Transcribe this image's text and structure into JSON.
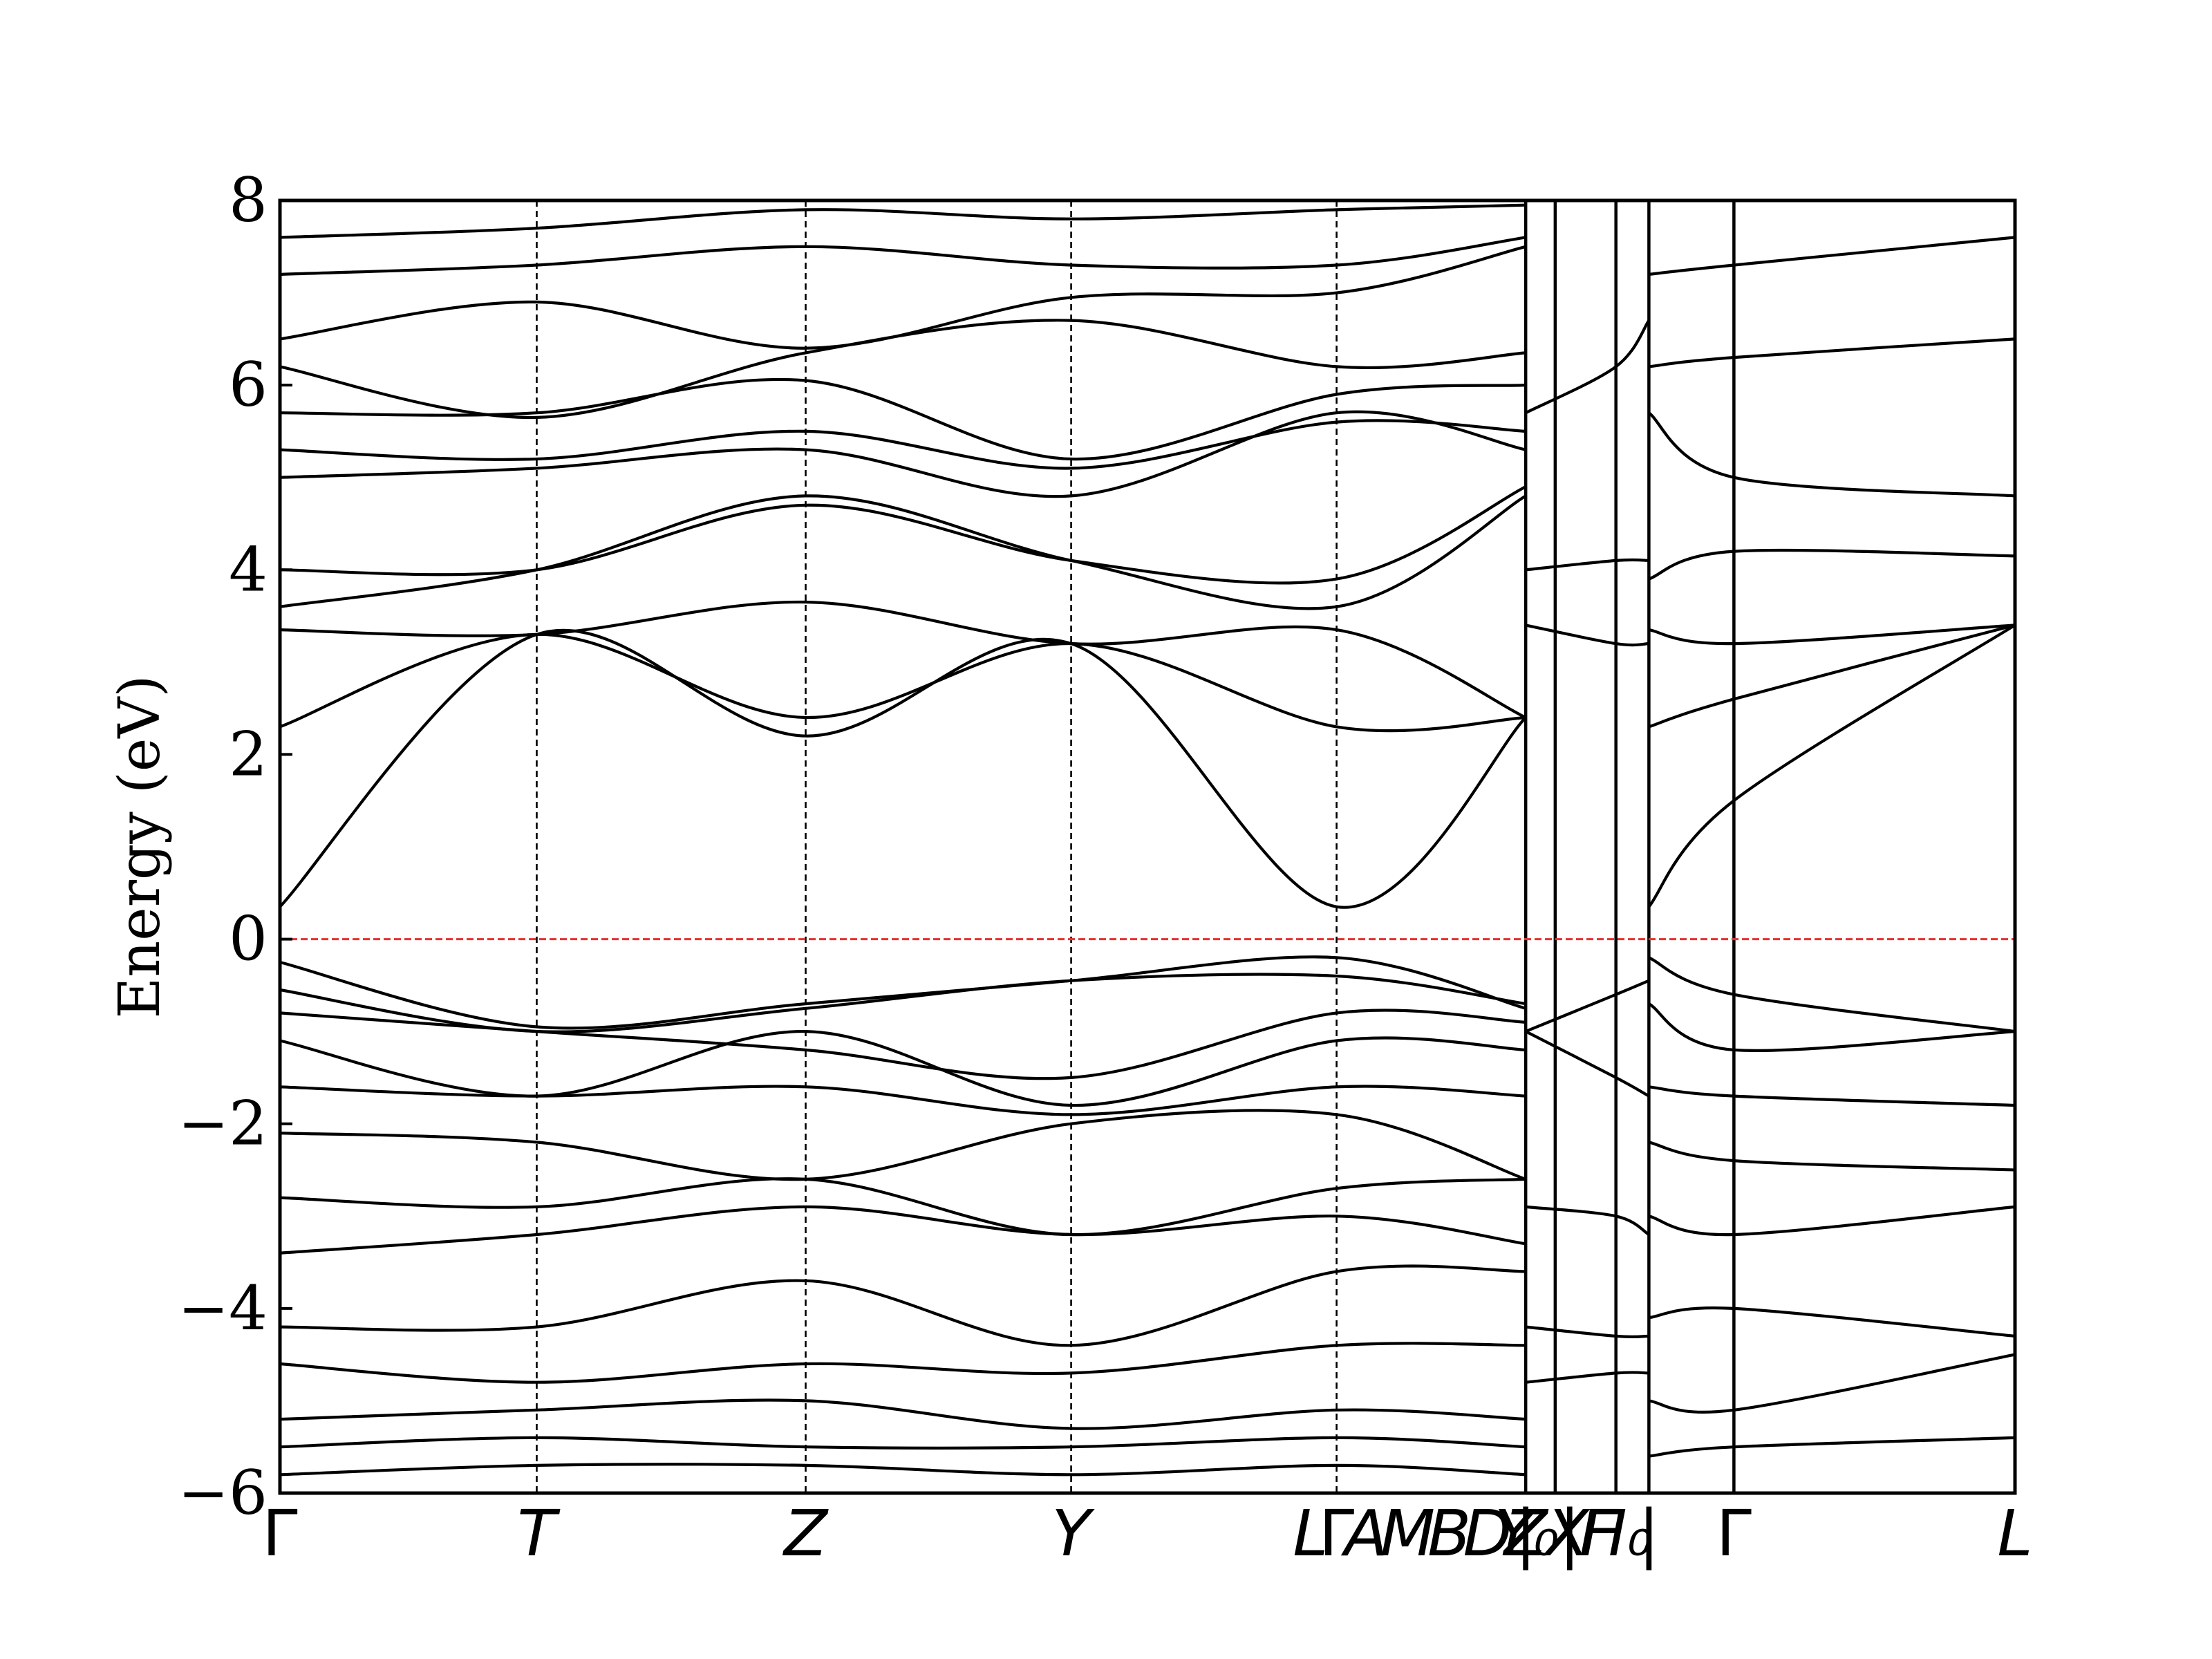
{
  "chart_data": {
    "type": "line",
    "title": "",
    "xlabel": "",
    "ylabel": "Energy (eV)",
    "ylim": [
      -6,
      8
    ],
    "yticks": [
      -6,
      -4,
      -2,
      0,
      2,
      4,
      6,
      8
    ],
    "ytick_labels": [
      "−6",
      "−4",
      "−2",
      "0",
      "2",
      "4",
      "6",
      "8"
    ],
    "grid": false,
    "fermi_level": 0,
    "colors": {
      "bands": "#000000",
      "fermi": "#e8322e",
      "divider": "#000000"
    },
    "x_range": [
      0,
      100
    ],
    "kpath": [
      {
        "label": "Γ",
        "x": 0,
        "italic": false,
        "kind": "edge"
      },
      {
        "label": "T",
        "x": 14.8,
        "italic": true,
        "kind": "dashed"
      },
      {
        "label": "Z",
        "x": 30.3,
        "italic": true,
        "kind": "dashed"
      },
      {
        "label": "Y",
        "x": 45.6,
        "italic": true,
        "kind": "dashed"
      },
      {
        "label": "L",
        "x": 59.4,
        "italic": true,
        "kind": "label"
      },
      {
        "label": "Γ",
        "x": 60.9,
        "italic": false,
        "kind": "dashed"
      },
      {
        "label": "A",
        "x": 62.6,
        "italic": true,
        "kind": "label"
      },
      {
        "label": "M",
        "x": 65.0,
        "italic": true,
        "kind": "label"
      },
      {
        "label": "B",
        "x": 67.4,
        "italic": true,
        "kind": "label"
      },
      {
        "label": "D",
        "x": 69.6,
        "italic": true,
        "kind": "label"
      },
      {
        "label": "Z",
        "x": 71.8,
        "italic": true,
        "kind": "label"
      },
      {
        "label": "X",
        "x": 74.2,
        "italic": true,
        "kind": "label"
      },
      {
        "label": "|",
        "x": 71.8,
        "italic": false,
        "kind": "solid"
      },
      {
        "label": "Y₀|Γ",
        "x": 73.5,
        "italic": true,
        "kind": "solid"
      },
      {
        "label": "H₀",
        "x": 77.0,
        "italic": true,
        "kind": "solid"
      },
      {
        "label": "|",
        "x": 78.9,
        "italic": false,
        "kind": "solid"
      },
      {
        "label": "Γ",
        "x": 83.8,
        "italic": false,
        "kind": "solid"
      },
      {
        "label": "L",
        "x": 100,
        "italic": true,
        "kind": "edge"
      }
    ],
    "series": [
      {
        "x": [
          0,
          14.8,
          30.3,
          45.6,
          60.9,
          71.8
        ],
        "y": [
          0.35,
          3.3,
          2.2,
          3.2,
          0.35,
          2.4
        ]
      },
      {
        "x": [
          0,
          14.8,
          30.3,
          45.6,
          60.9,
          71.8
        ],
        "y": [
          2.3,
          3.3,
          2.4,
          3.2,
          2.3,
          2.4
        ]
      },
      {
        "x": [
          0,
          14.8,
          30.3,
          45.6,
          60.9,
          71.8
        ],
        "y": [
          3.35,
          3.3,
          3.65,
          3.2,
          3.35,
          2.4
        ]
      },
      {
        "x": [
          0,
          14.8,
          30.3,
          45.6,
          60.9,
          71.8
        ],
        "y": [
          3.6,
          4.0,
          4.8,
          4.1,
          3.6,
          4.8
        ]
      },
      {
        "x": [
          0,
          14.8,
          30.3,
          45.6,
          60.9,
          71.8
        ],
        "y": [
          4.0,
          4.0,
          4.7,
          4.1,
          3.9,
          4.9
        ]
      },
      {
        "x": [
          0,
          14.8,
          30.3,
          45.6,
          60.9,
          71.8
        ],
        "y": [
          5.0,
          5.1,
          5.3,
          4.8,
          5.7,
          5.3
        ]
      },
      {
        "x": [
          0,
          14.8,
          30.3,
          45.6,
          60.9,
          71.8
        ],
        "y": [
          5.3,
          5.2,
          5.5,
          5.1,
          5.6,
          5.5
        ]
      },
      {
        "x": [
          0,
          14.8,
          30.3,
          45.6,
          60.9,
          71.8
        ],
        "y": [
          5.7,
          5.7,
          6.05,
          5.2,
          5.9,
          6.0
        ]
      },
      {
        "x": [
          0,
          14.8,
          30.3,
          45.6,
          60.9,
          71.8
        ],
        "y": [
          6.2,
          5.65,
          6.35,
          6.7,
          6.2,
          6.35
        ]
      },
      {
        "x": [
          0,
          14.8,
          30.3,
          45.6,
          60.9,
          71.8
        ],
        "y": [
          6.5,
          6.9,
          6.4,
          6.95,
          7.0,
          7.5
        ]
      },
      {
        "x": [
          0,
          14.8,
          30.3,
          45.6,
          60.9,
          71.8
        ],
        "y": [
          7.2,
          7.3,
          7.5,
          7.3,
          7.3,
          7.6
        ]
      },
      {
        "x": [
          0,
          14.8,
          30.3,
          45.6,
          60.9,
          71.8
        ],
        "y": [
          7.6,
          7.7,
          7.9,
          7.8,
          7.9,
          7.95
        ]
      },
      {
        "x": [
          0,
          14.8,
          30.3,
          45.6,
          60.9,
          71.8
        ],
        "y": [
          -0.25,
          -0.95,
          -0.7,
          -0.45,
          -0.2,
          -0.75
        ]
      },
      {
        "x": [
          0,
          14.8,
          30.3,
          45.6,
          60.9,
          71.8
        ],
        "y": [
          -0.55,
          -1.0,
          -0.75,
          -0.45,
          -0.4,
          -0.7
        ]
      },
      {
        "x": [
          0,
          14.8,
          30.3,
          45.6,
          60.9,
          71.8
        ],
        "y": [
          -0.8,
          -1.0,
          -1.2,
          -1.5,
          -0.8,
          -0.9
        ]
      },
      {
        "x": [
          0,
          14.8,
          30.3,
          45.6,
          60.9,
          71.8
        ],
        "y": [
          -1.1,
          -1.7,
          -1.0,
          -1.8,
          -1.1,
          -1.2
        ]
      },
      {
        "x": [
          0,
          14.8,
          30.3,
          45.6,
          60.9,
          71.8
        ],
        "y": [
          -1.6,
          -1.7,
          -1.6,
          -1.9,
          -1.6,
          -1.7
        ]
      },
      {
        "x": [
          0,
          14.8,
          30.3,
          45.6,
          60.9,
          71.8
        ],
        "y": [
          -2.1,
          -2.2,
          -2.6,
          -2.0,
          -1.9,
          -2.6
        ]
      },
      {
        "x": [
          0,
          14.8,
          30.3,
          45.6,
          60.9,
          71.8
        ],
        "y": [
          -2.8,
          -2.9,
          -2.6,
          -3.2,
          -2.7,
          -2.6
        ]
      },
      {
        "x": [
          0,
          14.8,
          30.3,
          45.6,
          60.9,
          71.8
        ],
        "y": [
          -3.4,
          -3.2,
          -2.9,
          -3.2,
          -3.0,
          -3.3
        ]
      },
      {
        "x": [
          0,
          14.8,
          30.3,
          45.6,
          60.9,
          71.8
        ],
        "y": [
          -4.2,
          -4.2,
          -3.7,
          -4.4,
          -3.6,
          -3.6
        ]
      },
      {
        "x": [
          0,
          14.8,
          30.3,
          45.6,
          60.9,
          71.8
        ],
        "y": [
          -4.6,
          -4.8,
          -4.6,
          -4.7,
          -4.4,
          -4.4
        ]
      },
      {
        "x": [
          0,
          14.8,
          30.3,
          45.6,
          60.9,
          71.8
        ],
        "y": [
          -5.2,
          -5.1,
          -5.0,
          -5.3,
          -5.1,
          -5.2
        ]
      },
      {
        "x": [
          0,
          14.8,
          30.3,
          45.6,
          60.9,
          71.8
        ],
        "y": [
          -5.5,
          -5.4,
          -5.5,
          -5.5,
          -5.4,
          -5.5
        ]
      },
      {
        "x": [
          0,
          14.8,
          30.3,
          45.6,
          60.9,
          71.8
        ],
        "y": [
          -5.8,
          -5.7,
          -5.7,
          -5.8,
          -5.7,
          -5.8
        ]
      },
      {
        "x": [
          71.8,
          77.0,
          78.9
        ],
        "y": [
          5.7,
          6.2,
          6.7
        ]
      },
      {
        "x": [
          71.8,
          77.0,
          78.9
        ],
        "y": [
          4.0,
          4.1,
          4.1
        ]
      },
      {
        "x": [
          71.8,
          77.0,
          78.9
        ],
        "y": [
          3.4,
          3.2,
          3.2
        ]
      },
      {
        "x": [
          71.8,
          77.0,
          78.9
        ],
        "y": [
          -1.0,
          -0.6,
          -0.45
        ]
      },
      {
        "x": [
          71.8,
          77.0,
          78.9
        ],
        "y": [
          -1.0,
          -1.5,
          -1.7
        ]
      },
      {
        "x": [
          71.8,
          77.0,
          78.9
        ],
        "y": [
          -2.9,
          -3.0,
          -3.2
        ]
      },
      {
        "x": [
          71.8,
          77.0,
          78.9
        ],
        "y": [
          -4.2,
          -4.3,
          -4.3
        ]
      },
      {
        "x": [
          71.8,
          77.0,
          78.9
        ],
        "y": [
          -4.8,
          -4.7,
          -4.7
        ]
      },
      {
        "x": [
          78.9,
          83.8,
          100
        ],
        "y": [
          0.35,
          1.5,
          3.4
        ]
      },
      {
        "x": [
          78.9,
          83.8,
          100
        ],
        "y": [
          2.3,
          2.6,
          3.4
        ]
      },
      {
        "x": [
          78.9,
          83.8,
          100
        ],
        "y": [
          3.35,
          3.2,
          3.4
        ]
      },
      {
        "x": [
          78.9,
          83.8,
          100
        ],
        "y": [
          3.9,
          4.2,
          4.15
        ]
      },
      {
        "x": [
          78.9,
          83.8,
          100
        ],
        "y": [
          5.7,
          5.0,
          4.8
        ]
      },
      {
        "x": [
          78.9,
          83.8,
          100
        ],
        "y": [
          6.2,
          6.3,
          6.5
        ]
      },
      {
        "x": [
          78.9,
          83.8,
          100
        ],
        "y": [
          7.2,
          7.3,
          7.6
        ]
      },
      {
        "x": [
          78.9,
          83.8,
          100
        ],
        "y": [
          -0.2,
          -0.6,
          -1.0
        ]
      },
      {
        "x": [
          78.9,
          83.8,
          100
        ],
        "y": [
          -0.7,
          -1.2,
          -1.0
        ]
      },
      {
        "x": [
          78.9,
          83.8,
          100
        ],
        "y": [
          -1.6,
          -1.7,
          -1.8
        ]
      },
      {
        "x": [
          78.9,
          83.8,
          100
        ],
        "y": [
          -2.2,
          -2.4,
          -2.5
        ]
      },
      {
        "x": [
          78.9,
          83.8,
          100
        ],
        "y": [
          -3.0,
          -3.2,
          -2.9
        ]
      },
      {
        "x": [
          78.9,
          83.8,
          100
        ],
        "y": [
          -4.1,
          -4.0,
          -4.3
        ]
      },
      {
        "x": [
          78.9,
          83.8,
          100
        ],
        "y": [
          -5.0,
          -5.1,
          -4.5
        ]
      },
      {
        "x": [
          78.9,
          83.8,
          100
        ],
        "y": [
          -5.6,
          -5.5,
          -5.4
        ]
      }
    ]
  }
}
